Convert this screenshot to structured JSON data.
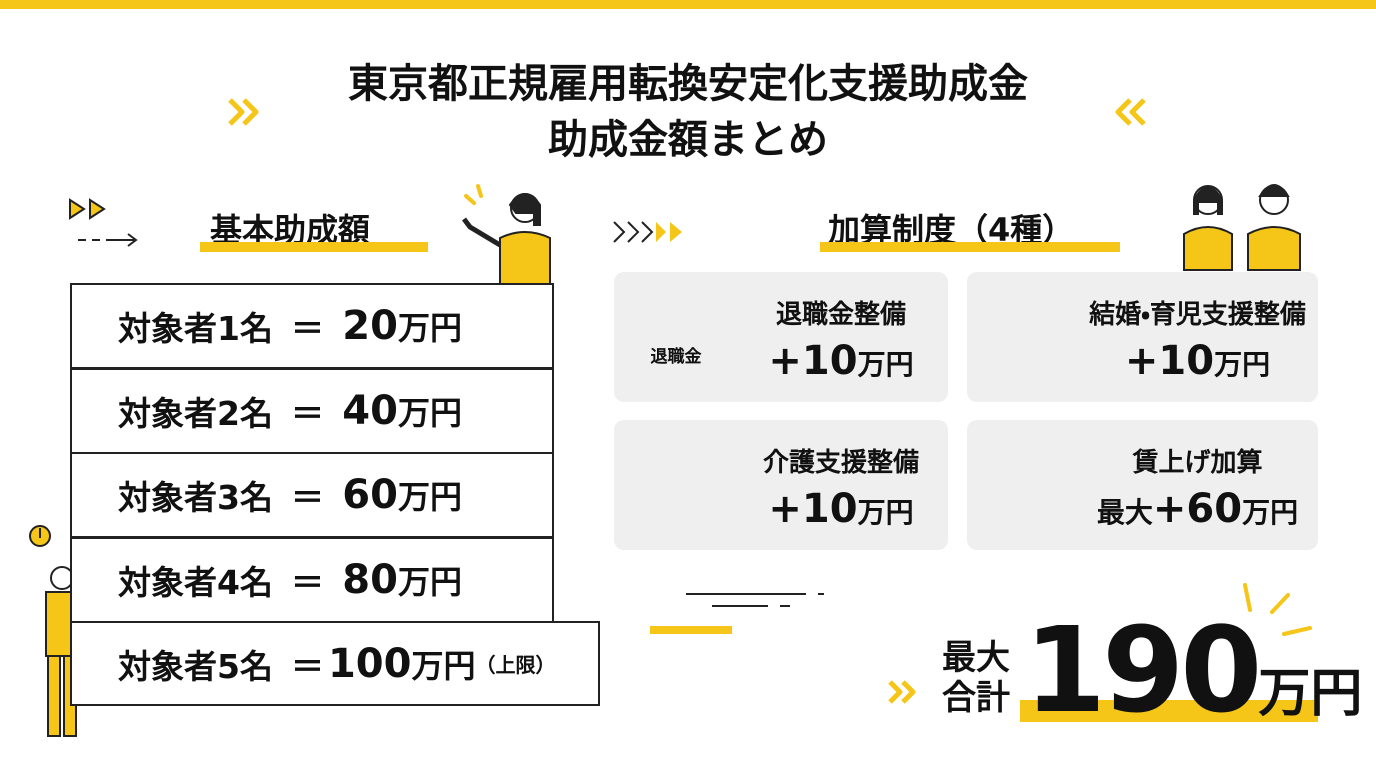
{
  "header": {
    "title_line1": "東京都正規雇用転換安定化支援助成金",
    "title_line2": "助成金額まとめ"
  },
  "basic": {
    "heading": "基本助成額",
    "rows": [
      {
        "label": "対象者1名",
        "eq": "＝",
        "amount": "20",
        "unit": "万円"
      },
      {
        "label": "対象者2名",
        "eq": "＝",
        "amount": "40",
        "unit": "万円"
      },
      {
        "label": "対象者3名",
        "eq": "＝",
        "amount": "60",
        "unit": "万円"
      },
      {
        "label": "対象者4名",
        "eq": "＝",
        "amount": "80",
        "unit": "万円"
      },
      {
        "label": "対象者5名",
        "eq": "＝",
        "amount": "100",
        "unit": "万円",
        "note": "（上限）"
      }
    ]
  },
  "addons": {
    "heading": "加算制度（4種）",
    "cards": [
      {
        "title": "退職金整備",
        "prefix": "",
        "amount": "+10",
        "unit": "万円",
        "icon_text": "退職金"
      },
      {
        "title": "結婚・育児支援整備",
        "prefix": "",
        "amount": "+10",
        "unit": "万円"
      },
      {
        "title": "介護支援整備",
        "prefix": "",
        "amount": "+10",
        "unit": "万円"
      },
      {
        "title": "賃上げ加算",
        "prefix": "最大",
        "amount": "+60",
        "unit": "万円"
      }
    ]
  },
  "total": {
    "label_line1": "最大",
    "label_line2": "合計",
    "amount": "190",
    "unit": "万円"
  }
}
